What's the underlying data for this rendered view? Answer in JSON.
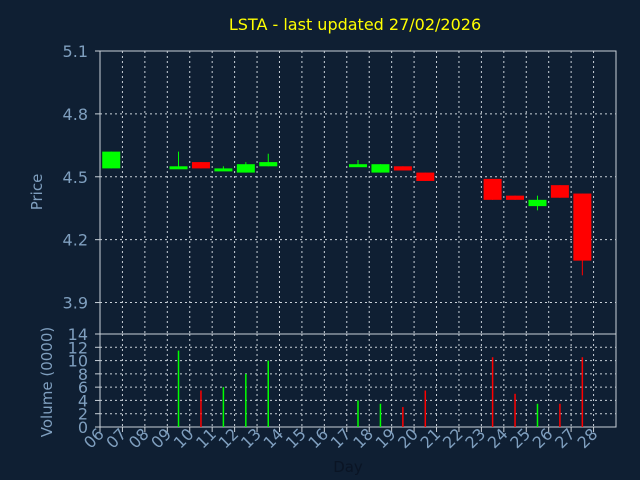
{
  "chart_data": [
    {
      "type": "candlestick",
      "title": "LSTA - last updated 27/02/2026",
      "ylabel": "Price",
      "ylim": [
        3.75,
        5.1
      ],
      "yticks": [
        "3.9",
        "4.2",
        "4.5",
        "4.8",
        "5.1"
      ],
      "grid": true,
      "colors": {
        "up": "#00ff00",
        "down": "#ff0000",
        "title": "#ffff00",
        "text": "#7f9fbf"
      },
      "days": [
        {
          "day": "06",
          "open": 4.54,
          "high": 4.62,
          "low": 4.54,
          "close": 4.62
        },
        {
          "day": "07"
        },
        {
          "day": "08"
        },
        {
          "day": "09",
          "open": 4.54,
          "high": 4.62,
          "low": 4.54,
          "close": 4.55
        },
        {
          "day": "10",
          "open": 4.57,
          "high": 4.57,
          "low": 4.54,
          "close": 4.54
        },
        {
          "day": "11",
          "open": 4.53,
          "high": 4.55,
          "low": 4.53,
          "close": 4.54
        },
        {
          "day": "12",
          "open": 4.52,
          "high": 4.57,
          "low": 4.52,
          "close": 4.56
        },
        {
          "day": "13",
          "open": 4.55,
          "high": 4.61,
          "low": 4.55,
          "close": 4.57
        },
        {
          "day": "14"
        },
        {
          "day": "15"
        },
        {
          "day": "16"
        },
        {
          "day": "17",
          "open": 4.55,
          "high": 4.58,
          "low": 4.55,
          "close": 4.56
        },
        {
          "day": "18",
          "open": 4.52,
          "high": 4.56,
          "low": 4.52,
          "close": 4.56
        },
        {
          "day": "19",
          "open": 4.55,
          "high": 4.55,
          "low": 4.53,
          "close": 4.53
        },
        {
          "day": "20",
          "open": 4.52,
          "high": 4.52,
          "low": 4.48,
          "close": 4.48
        },
        {
          "day": "21"
        },
        {
          "day": "22"
        },
        {
          "day": "23",
          "open": 4.49,
          "high": 4.49,
          "low": 4.39,
          "close": 4.39
        },
        {
          "day": "24",
          "open": 4.41,
          "high": 4.41,
          "low": 4.39,
          "close": 4.39
        },
        {
          "day": "25",
          "open": 4.36,
          "high": 4.41,
          "low": 4.34,
          "close": 4.39
        },
        {
          "day": "26",
          "open": 4.46,
          "high": 4.46,
          "low": 4.4,
          "close": 4.4
        },
        {
          "day": "27",
          "open": 4.42,
          "high": 4.42,
          "low": 4.03,
          "close": 4.1
        },
        {
          "day": "28"
        }
      ]
    },
    {
      "type": "bar",
      "ylabel": "Volume (0000)",
      "xlabel": "Day",
      "ylim": [
        0,
        14
      ],
      "yticks": [
        "0",
        "2",
        "4",
        "6",
        "8",
        "10",
        "12",
        "14"
      ],
      "grid": true,
      "categories": [
        "06",
        "07",
        "08",
        "09",
        "10",
        "11",
        "12",
        "13",
        "14",
        "15",
        "16",
        "17",
        "18",
        "19",
        "20",
        "21",
        "22",
        "23",
        "24",
        "25",
        "26",
        "27",
        "28"
      ],
      "values": [
        0,
        0,
        0,
        11.5,
        5.5,
        6,
        8,
        10,
        0,
        0,
        0,
        4,
        3.5,
        3,
        5.5,
        0,
        0,
        10.5,
        5,
        3.5,
        3.5,
        10.5,
        0
      ],
      "directions": [
        "",
        "",
        "",
        "up",
        "down",
        "up",
        "up",
        "up",
        "",
        "",
        "",
        "up",
        "up",
        "down",
        "down",
        "",
        "",
        "down",
        "down",
        "up",
        "down",
        "down",
        ""
      ]
    }
  ]
}
